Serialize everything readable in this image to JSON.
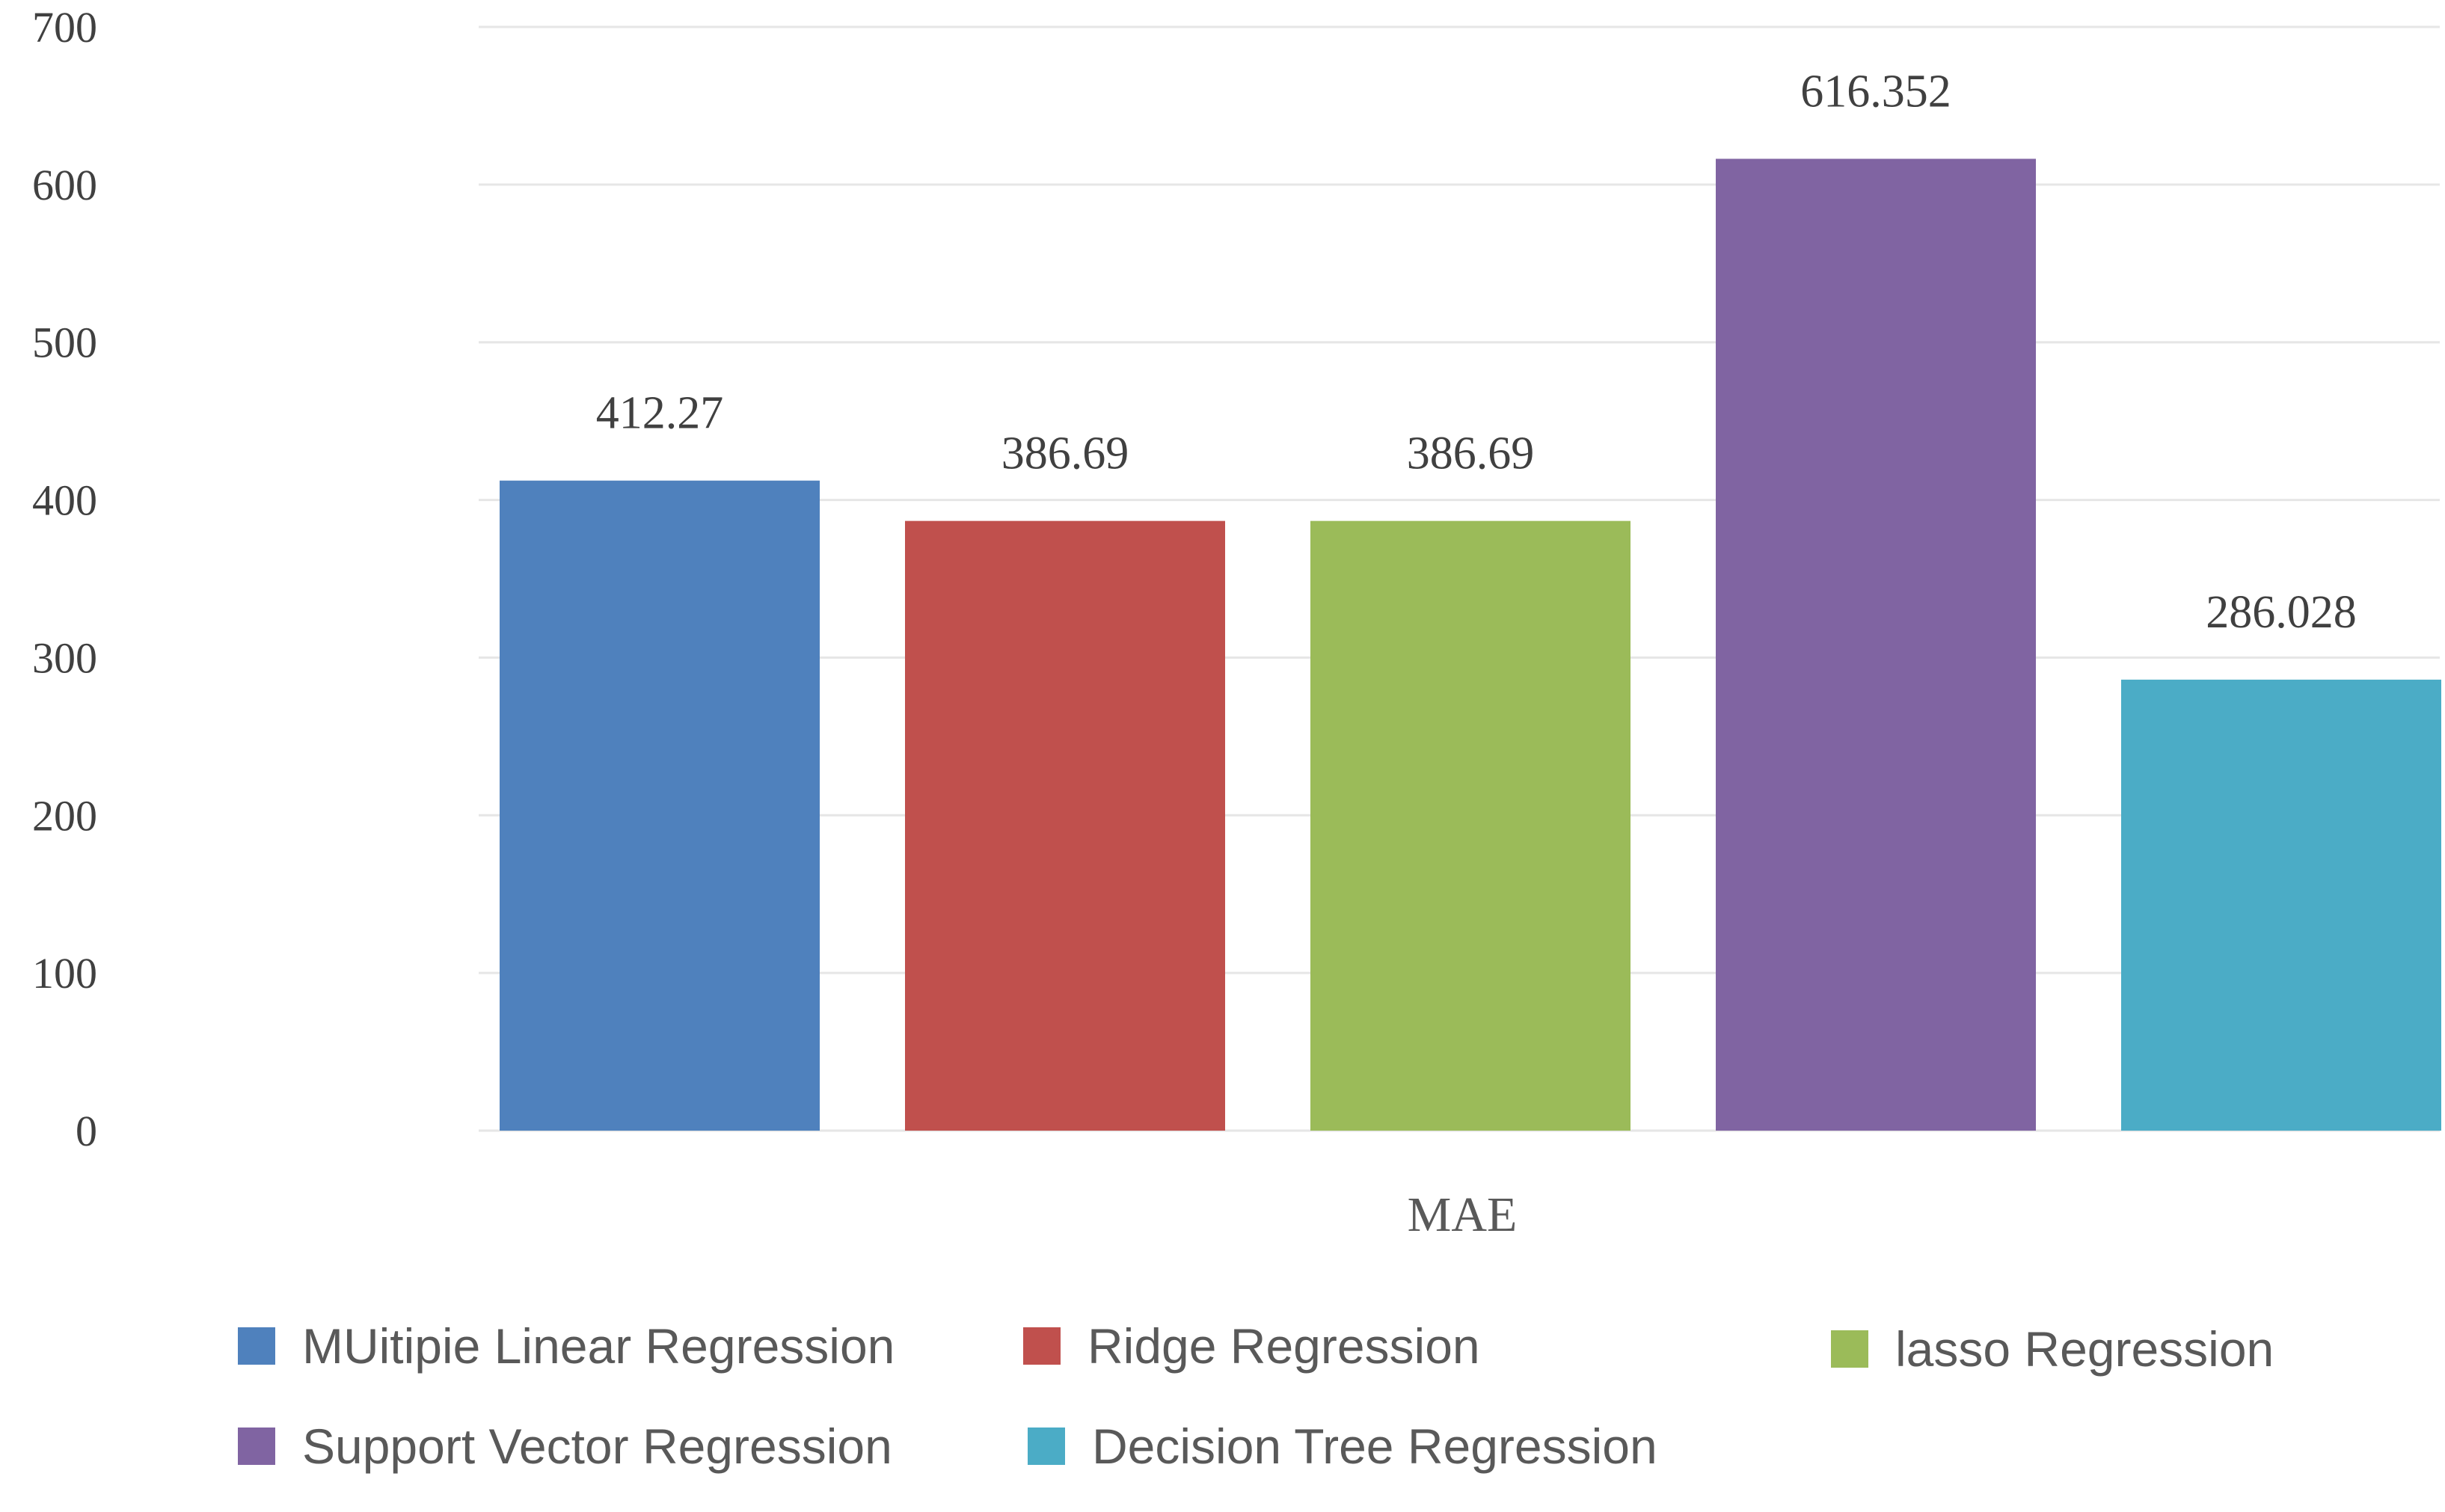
{
  "chart_data": {
    "type": "bar",
    "categories": [
      "MAE"
    ],
    "series": [
      {
        "name": "MUitipie Linear Regression",
        "values": [
          412.27
        ],
        "label": "412.27",
        "color": "#4f81bd"
      },
      {
        "name": "Ridge Regression",
        "values": [
          386.69
        ],
        "label": "386.69",
        "color": "#c0504d"
      },
      {
        "name": "lasso Regression",
        "values": [
          386.69
        ],
        "label": "386.69",
        "color": "#9bbb59"
      },
      {
        "name": "Support Vector Regression",
        "values": [
          616.352
        ],
        "label": "616.352",
        "color": "#8064a2"
      },
      {
        "name": "Decision Tree Regression",
        "values": [
          286.028
        ],
        "label": "286.028",
        "color": "#4bacc6"
      }
    ],
    "yticks": [
      "0",
      "100",
      "200",
      "300",
      "400",
      "500",
      "600",
      "700"
    ],
    "ylim": [
      0,
      700
    ],
    "title": "",
    "xlabel": "",
    "ylabel": "",
    "grid": true,
    "legend_position": "bottom"
  }
}
